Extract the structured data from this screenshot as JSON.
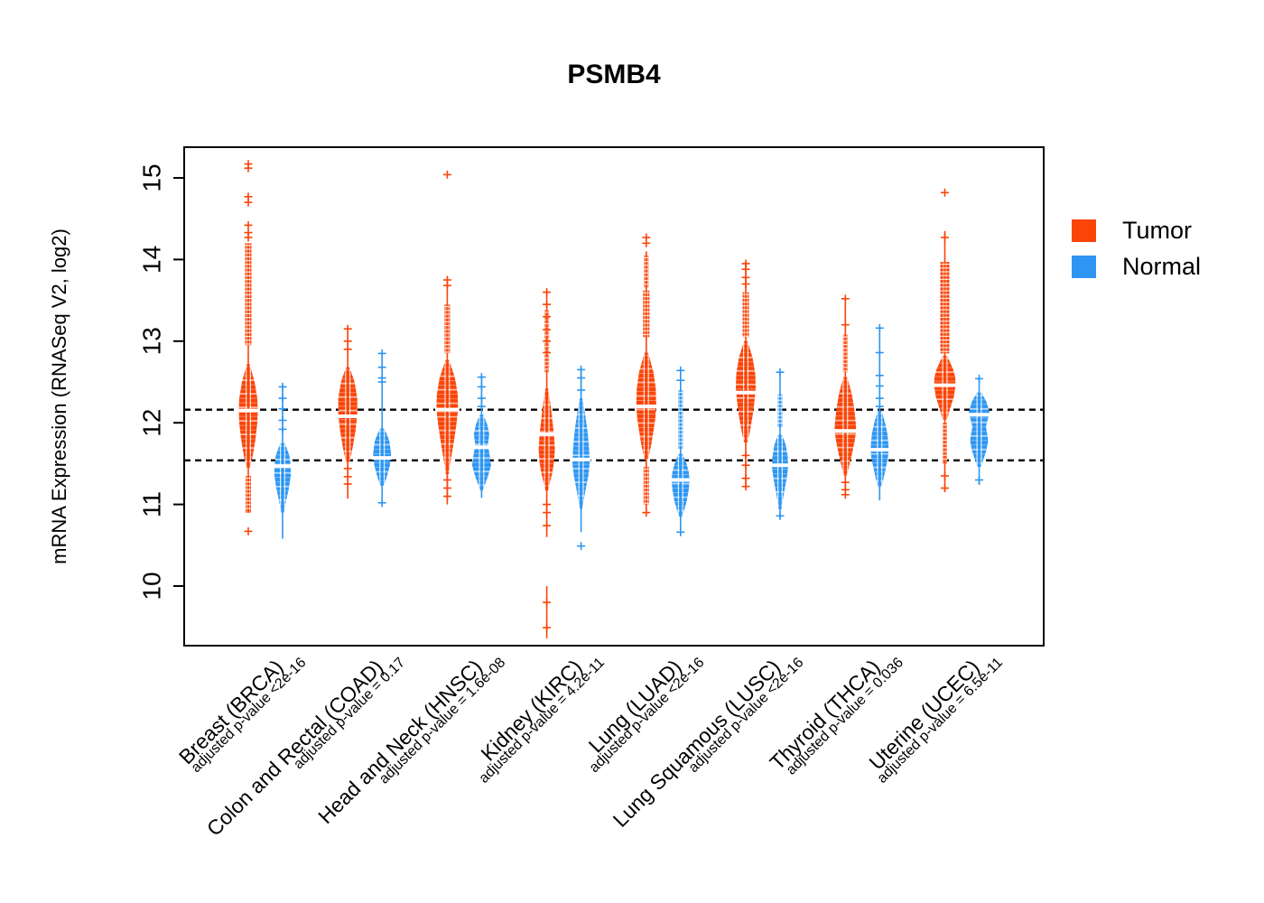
{
  "chart_data": {
    "type": "violin",
    "title": "PSMB4",
    "ylabel": "mRNA Expression (RNASeq V2, log2)",
    "ylim": [
      9.27,
      15.38
    ],
    "yticks": [
      10,
      11,
      12,
      13,
      14,
      15
    ],
    "grid": false,
    "hlines": [
      12.16,
      11.54
    ],
    "legend_position": "right",
    "legend": [
      {
        "label": "Tumor",
        "color": "#FA4408"
      },
      {
        "label": "Normal",
        "color": "#2E96F2"
      }
    ],
    "colors": {
      "tumor": "#FA4408",
      "normal": "#2E96F2"
    },
    "groups": [
      {
        "label": "Breast (BRCA)",
        "sub": "adjusted p-value <2e-16",
        "code": "BRCA",
        "tumor": {
          "stem": [
            10.9,
            13.3
          ],
          "median": 12.15,
          "stacks": [
            [
              12.95,
              14.2,
              3.5
            ],
            [
              10.9,
              11.35,
              3
            ]
          ],
          "body": [
            [
              12.72,
              1.5
            ],
            [
              12.5,
              7
            ],
            [
              12.3,
              10
            ],
            [
              12.15,
              10.5
            ],
            [
              12.0,
              10
            ],
            [
              11.8,
              8
            ],
            [
              11.6,
              5
            ],
            [
              11.45,
              2
            ]
          ],
          "outliers": [
            15.17,
            15.12,
            14.77,
            14.7,
            14.42,
            14.33,
            14.27,
            10.67
          ]
        },
        "normal": {
          "stem": [
            10.58,
            12.46
          ],
          "median": 11.47,
          "stacks": [],
          "body": [
            [
              11.75,
              2.5
            ],
            [
              11.6,
              7.5
            ],
            [
              11.48,
              9
            ],
            [
              11.35,
              9
            ],
            [
              11.2,
              7
            ],
            [
              11.05,
              4
            ],
            [
              10.9,
              1.5
            ]
          ],
          "outliers": [
            12.44,
            12.3,
            12.17,
            12.03,
            11.92
          ]
        }
      },
      {
        "label": "Colon and Rectal (COAD)",
        "sub": "adjusted p-value = 0.17",
        "code": "COAD",
        "tumor": {
          "stem": [
            11.07,
            13.17
          ],
          "median": 12.08,
          "stacks": [],
          "body": [
            [
              12.68,
              2
            ],
            [
              12.5,
              7.5
            ],
            [
              12.3,
              10.5
            ],
            [
              12.1,
              10.5
            ],
            [
              11.9,
              8.5
            ],
            [
              11.7,
              5.5
            ],
            [
              11.52,
              2
            ]
          ],
          "outliers": [
            13.15,
            13.0,
            12.9,
            11.44,
            11.34,
            11.25
          ]
        },
        "normal": {
          "stem": [
            10.97,
            12.87
          ],
          "median": 11.57,
          "stacks": [],
          "body": [
            [
              11.93,
              2.5
            ],
            [
              11.78,
              8
            ],
            [
              11.62,
              10
            ],
            [
              11.47,
              8.5
            ],
            [
              11.33,
              5
            ],
            [
              11.23,
              2
            ]
          ],
          "outliers": [
            12.85,
            12.68,
            12.55,
            12.5,
            11.02
          ]
        }
      },
      {
        "label": "Head and Neck (HNSC)",
        "sub": "adjusted p-value = 1.6e-08",
        "code": "HNSC",
        "tumor": {
          "stem": [
            11.0,
            13.78
          ],
          "median": 12.16,
          "stacks": [
            [
              12.85,
              13.45,
              3
            ]
          ],
          "body": [
            [
              12.77,
              2
            ],
            [
              12.55,
              8.5
            ],
            [
              12.35,
              11.5
            ],
            [
              12.17,
              12
            ],
            [
              11.97,
              10
            ],
            [
              11.75,
              7
            ],
            [
              11.55,
              4
            ],
            [
              11.37,
              1.5
            ]
          ],
          "outliers": [
            15.04,
            13.75,
            13.68,
            11.3,
            11.2,
            11.1
          ]
        },
        "normal": {
          "stem": [
            11.08,
            12.58
          ],
          "median": 11.7,
          "stacks": [],
          "body": [
            [
              12.1,
              2
            ],
            [
              11.97,
              6.5
            ],
            [
              11.86,
              8.5
            ],
            [
              11.73,
              7
            ],
            [
              11.6,
              9
            ],
            [
              11.48,
              10.5
            ],
            [
              11.36,
              7.5
            ],
            [
              11.25,
              4
            ],
            [
              11.17,
              1.5
            ]
          ],
          "outliers": [
            12.56,
            12.44,
            12.3,
            12.2
          ]
        }
      },
      {
        "label": "Kidney (KIRC)",
        "sub": "adjusted p-value = 4.2e-11",
        "code": "KIRC",
        "tumor": {
          "stem": [
            10.6,
            13.62
          ],
          "median": 11.86,
          "stacks": [
            [
              12.62,
              13.38,
              2.5
            ]
          ],
          "extra_stems": [
            [
              9.36,
              10.0
            ]
          ],
          "body": [
            [
              12.42,
              1.5
            ],
            [
              12.2,
              4.5
            ],
            [
              12.0,
              6.5
            ],
            [
              11.85,
              8
            ],
            [
              11.68,
              9
            ],
            [
              11.52,
              8
            ],
            [
              11.38,
              6
            ],
            [
              11.25,
              3
            ],
            [
              11.17,
              1.5
            ]
          ],
          "outliers": [
            13.6,
            13.45,
            13.3,
            13.14,
            13.0,
            12.86,
            11.0,
            10.9,
            10.74,
            9.8,
            9.49
          ]
        },
        "normal": {
          "stem": [
            10.66,
            12.67
          ],
          "median": 11.55,
          "stacks": [],
          "body": [
            [
              12.3,
              1.5
            ],
            [
              12.1,
              4.5
            ],
            [
              11.95,
              6.5
            ],
            [
              11.8,
              8
            ],
            [
              11.65,
              9
            ],
            [
              11.5,
              9.5
            ],
            [
              11.35,
              8
            ],
            [
              11.18,
              5
            ],
            [
              11.02,
              2.5
            ],
            [
              10.94,
              1
            ]
          ],
          "outliers": [
            12.65,
            12.55,
            12.4,
            10.49
          ]
        }
      },
      {
        "label": "Lung (LUAD)",
        "sub": "adjusted p-value <2e-16",
        "code": "LUAD",
        "tumor": {
          "stem": [
            10.9,
            14.1
          ],
          "median": 12.2,
          "stacks": [
            [
              13.05,
              13.62,
              3.5
            ],
            [
              13.66,
              14.05,
              2.5
            ],
            [
              11.0,
              11.46,
              3
            ]
          ],
          "body": [
            [
              12.86,
              2
            ],
            [
              12.62,
              8
            ],
            [
              12.42,
              10.5
            ],
            [
              12.22,
              11
            ],
            [
              12.05,
              10
            ],
            [
              11.87,
              7.5
            ],
            [
              11.7,
              5
            ],
            [
              11.56,
              2
            ]
          ],
          "outliers": [
            14.27,
            14.2,
            10.9
          ]
        },
        "normal": {
          "stem": [
            10.62,
            12.66
          ],
          "median": 11.3,
          "stacks": [
            [
              11.68,
              12.4,
              2.5
            ]
          ],
          "body": [
            [
              11.62,
              2.5
            ],
            [
              11.5,
              6.5
            ],
            [
              11.4,
              9
            ],
            [
              11.3,
              10
            ],
            [
              11.18,
              9
            ],
            [
              11.05,
              7
            ],
            [
              10.93,
              4
            ],
            [
              10.85,
              1.5
            ]
          ],
          "outliers": [
            12.64,
            12.52,
            10.66
          ]
        }
      },
      {
        "label": "Lung Squamous (LUSC)",
        "sub": "adjusted p-value <2e-16",
        "code": "LUSC",
        "tumor": {
          "stem": [
            11.2,
            13.97
          ],
          "median": 12.37,
          "stacks": [
            [
              13.05,
              13.6,
              3.5
            ]
          ],
          "body": [
            [
              13.0,
              2
            ],
            [
              12.8,
              7.5
            ],
            [
              12.6,
              10.5
            ],
            [
              12.42,
              11
            ],
            [
              12.25,
              9.5
            ],
            [
              12.08,
              7.5
            ],
            [
              11.92,
              5
            ],
            [
              11.76,
              2
            ]
          ],
          "outliers": [
            13.95,
            13.88,
            13.78,
            13.7,
            11.6,
            11.48,
            11.32,
            11.22
          ]
        },
        "normal": {
          "stem": [
            10.83,
            12.63
          ],
          "median": 11.48,
          "stacks": [
            [
              11.95,
              12.35,
              2.5
            ]
          ],
          "body": [
            [
              11.85,
              2.5
            ],
            [
              11.72,
              6.5
            ],
            [
              11.58,
              8.5
            ],
            [
              11.46,
              9
            ],
            [
              11.33,
              7.5
            ],
            [
              11.18,
              5
            ],
            [
              11.02,
              2.5
            ],
            [
              10.94,
              1.5
            ]
          ],
          "outliers": [
            12.62,
            10.86
          ]
        }
      },
      {
        "label": "Thyroid (THCA)",
        "sub": "adjusted p-value = 0.036",
        "code": "THCA",
        "tumor": {
          "stem": [
            11.1,
            13.54
          ],
          "median": 11.9,
          "stacks": [
            [
              12.62,
              13.08,
              2.5
            ]
          ],
          "body": [
            [
              12.56,
              2
            ],
            [
              12.36,
              7
            ],
            [
              12.16,
              10
            ],
            [
              12.0,
              11.5
            ],
            [
              11.9,
              12
            ],
            [
              11.76,
              10
            ],
            [
              11.6,
              7
            ],
            [
              11.46,
              4
            ],
            [
              11.35,
              1.5
            ]
          ],
          "outliers": [
            13.52,
            13.2,
            11.27,
            11.18,
            11.12
          ]
        },
        "normal": {
          "stem": [
            11.05,
            13.18
          ],
          "median": 11.67,
          "stacks": [],
          "body": [
            [
              12.15,
              2
            ],
            [
              12.0,
              6
            ],
            [
              11.87,
              8.5
            ],
            [
              11.76,
              9.5
            ],
            [
              11.67,
              10
            ],
            [
              11.56,
              9
            ],
            [
              11.43,
              6.5
            ],
            [
              11.3,
              4
            ],
            [
              11.22,
              2
            ]
          ],
          "outliers": [
            13.16,
            12.86,
            12.58,
            12.45,
            12.3,
            12.2
          ]
        }
      },
      {
        "label": "Uterine (UCEC)",
        "sub": "adjusted p-value = 6.5e-11",
        "code": "UCEC",
        "tumor": {
          "stem": [
            11.15,
            14.35
          ],
          "median": 12.46,
          "stacks": [
            [
              12.85,
              13.97,
              5
            ],
            [
              11.5,
              12.0,
              2.5
            ]
          ],
          "body": [
            [
              12.82,
              2.5
            ],
            [
              12.66,
              9
            ],
            [
              12.56,
              11.5
            ],
            [
              12.46,
              12
            ],
            [
              12.32,
              10
            ],
            [
              12.18,
              6
            ],
            [
              12.04,
              2.5
            ]
          ],
          "outliers": [
            14.82,
            14.27,
            11.35,
            11.2
          ]
        },
        "normal": {
          "stem": [
            11.24,
            12.56
          ],
          "median": 12.1,
          "stacks": [],
          "body": [
            [
              12.37,
              2.5
            ],
            [
              12.26,
              8
            ],
            [
              12.13,
              11.5
            ],
            [
              12.02,
              9
            ],
            [
              11.95,
              7.5
            ],
            [
              11.86,
              9
            ],
            [
              11.78,
              10
            ],
            [
              11.66,
              8
            ],
            [
              11.56,
              5
            ],
            [
              11.46,
              2
            ]
          ],
          "outliers": [
            12.54,
            11.3
          ]
        }
      }
    ]
  }
}
